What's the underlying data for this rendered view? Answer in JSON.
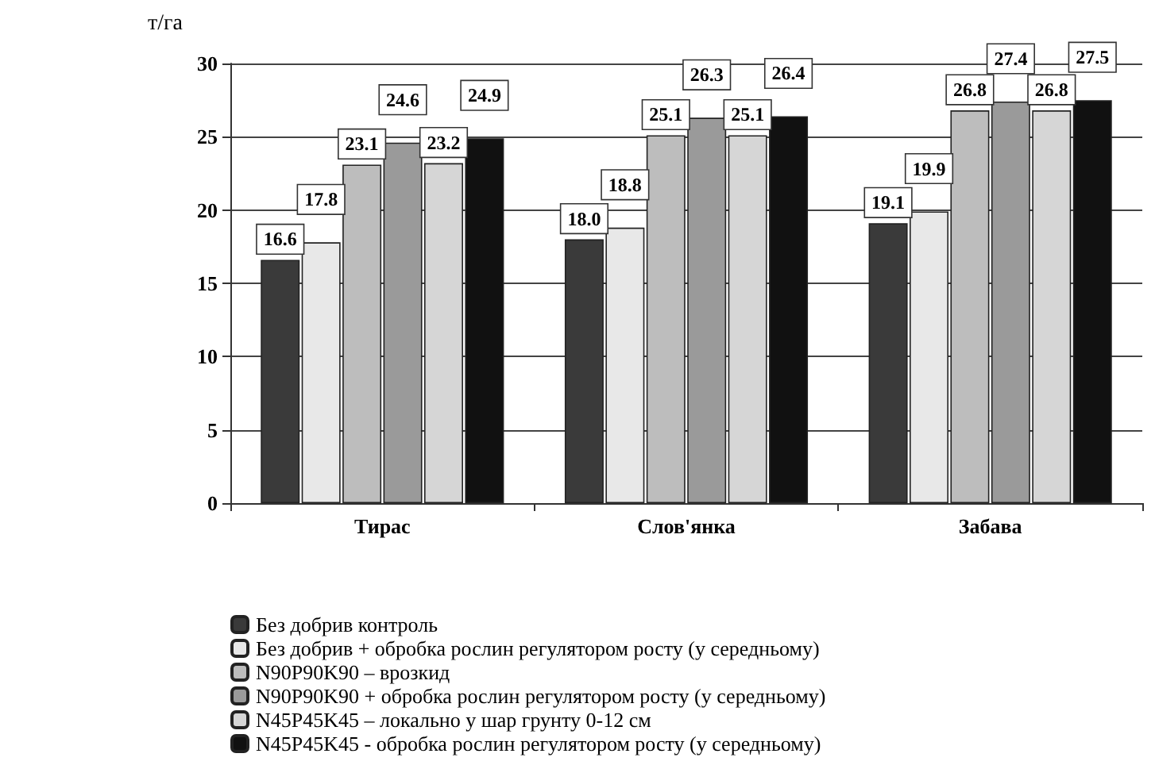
{
  "chart_data": {
    "type": "bar",
    "ylabel": "т/га",
    "categories": [
      "Тирас",
      "Слов'янка",
      "Забава"
    ],
    "series": [
      {
        "name": "Без добрив контроль",
        "color": "#3a3a3a",
        "values": [
          16.6,
          18.0,
          19.1
        ],
        "value_labels": [
          "16.6",
          "18.0",
          "19.1"
        ]
      },
      {
        "name": "Без добрив + обробка рослин регулятором росту (у середньому)",
        "color": "#e8e8e8",
        "values": [
          17.8,
          18.8,
          19.9
        ]
      },
      {
        "name": "N90P90K90 – врозкид",
        "color": "#bdbdbd",
        "values": [
          23.1,
          25.1,
          26.8
        ]
      },
      {
        "name": "N90P90K90 + обробка рослин регулятором росту (у середньому)",
        "color": "#9a9a9a",
        "values": [
          24.6,
          26.3,
          27.4
        ]
      },
      {
        "name": "N45P45K45 – локально у шар грунту 0-12 см",
        "color": "#d6d6d6",
        "values": [
          23.2,
          25.1,
          26.8
        ]
      },
      {
        "name": "N45P45K45 - обробка рослин регулятором росту (у середньому)",
        "color": "#111111",
        "values": [
          24.9,
          26.4,
          27.5
        ]
      }
    ],
    "ylim": [
      0,
      30
    ],
    "yticks": [
      0,
      5,
      10,
      15,
      20,
      25,
      30
    ],
    "grid": "y",
    "legend": "bottom",
    "data_labels": true
  }
}
